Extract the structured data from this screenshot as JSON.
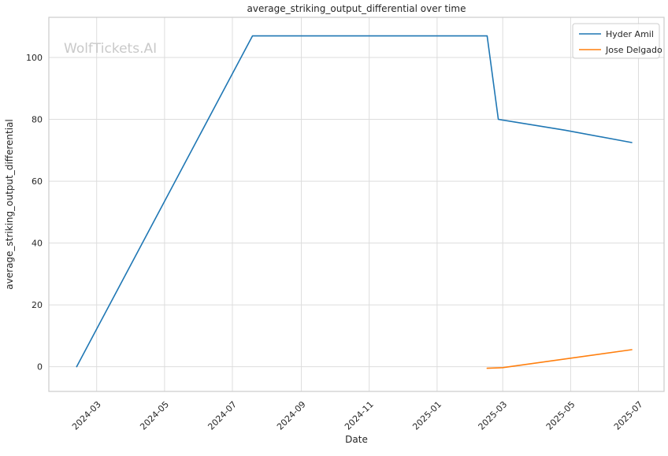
{
  "chart_data": {
    "type": "line",
    "title": "average_striking_output_differential over time",
    "xlabel": "Date",
    "ylabel": "average_striking_output_differential",
    "watermark": "WolfTickets.AI",
    "grid": true,
    "legend_position": "upper right",
    "x_ticks": [
      "2024-03",
      "2024-05",
      "2024-07",
      "2024-09",
      "2024-11",
      "2025-01",
      "2025-03",
      "2025-05",
      "2025-07"
    ],
    "y_ticks": [
      0,
      20,
      40,
      60,
      80,
      100
    ],
    "xlim": [
      "2024-01-18",
      "2025-07-24"
    ],
    "ylim": [
      -8,
      113
    ],
    "series": [
      {
        "name": "Hyder Amil",
        "color": "#1f77b4",
        "points": [
          [
            "2024-02-12",
            0
          ],
          [
            "2024-07-19",
            107
          ],
          [
            "2025-02-15",
            107
          ],
          [
            "2025-02-25",
            80
          ],
          [
            "2025-04-26",
            76.5
          ],
          [
            "2025-06-25",
            72.5
          ]
        ]
      },
      {
        "name": "Jose Delgado",
        "color": "#ff7f0e",
        "points": [
          [
            "2025-02-15",
            -0.5
          ],
          [
            "2025-03-01",
            -0.3
          ],
          [
            "2025-06-25",
            5.5
          ]
        ]
      }
    ],
    "colors": {
      "text": "#262626",
      "grid": "#dddddd",
      "border": "#cccccc",
      "watermark": "#c9c9c9",
      "background": "#ffffff"
    }
  }
}
